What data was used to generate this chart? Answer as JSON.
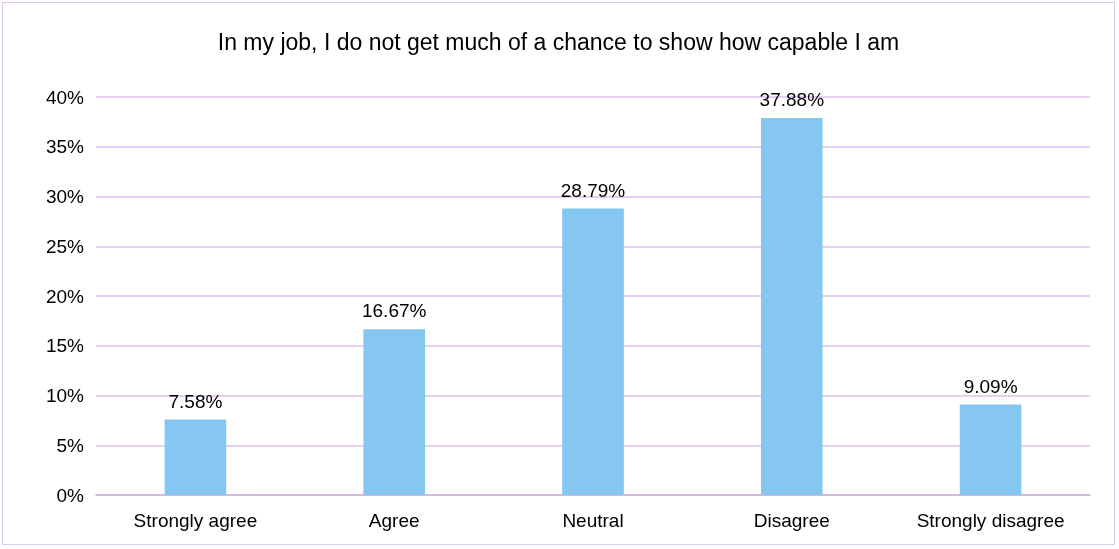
{
  "chart_data": {
    "type": "bar",
    "title": "In my job, I do not get much of a chance to show how capable I am",
    "categories": [
      "Strongly agree",
      "Agree",
      "Neutral",
      "Disagree",
      "Strongly disagree"
    ],
    "values": [
      7.58,
      16.67,
      28.79,
      37.88,
      9.09
    ],
    "value_labels": [
      "7.58%",
      "16.67%",
      "28.79%",
      "37.88%",
      "9.09%"
    ],
    "color": "#85c7f0",
    "ylim": [
      0,
      40
    ],
    "yticks": [
      {
        "value": 0,
        "label": "0%"
      },
      {
        "value": 5,
        "label": "5%"
      },
      {
        "value": 10,
        "label": "10%"
      },
      {
        "value": 15,
        "label": "15%"
      },
      {
        "value": 20,
        "label": "20%"
      },
      {
        "value": 25,
        "label": "25%"
      },
      {
        "value": 30,
        "label": "30%"
      },
      {
        "value": 35,
        "label": "35%"
      },
      {
        "value": 40,
        "label": "40%"
      }
    ],
    "grid": "y"
  }
}
